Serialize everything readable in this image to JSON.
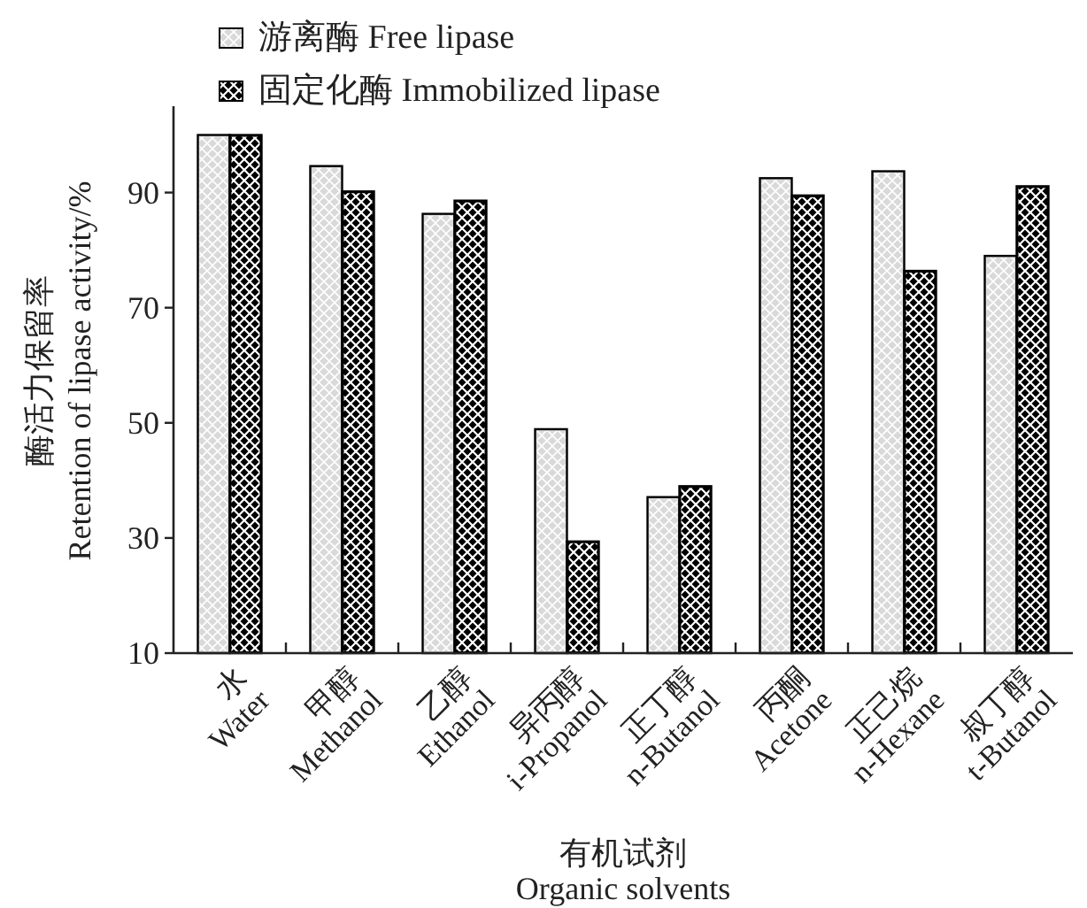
{
  "chart_data": {
    "type": "bar",
    "xlabel": "有机试剂 Organic solvents",
    "ylabel": "酶活力保留率 Retention of lipase activity/%",
    "categories": [
      "水 Water",
      "甲醇 Methanol",
      "乙醇 Ethanol",
      "异丙醇 i-Propanol",
      "正丁醇 n-Butanol",
      "丙酮 Acetone",
      "正己烷 n-Hexane",
      "叔丁醇 t-Butanol"
    ],
    "series": [
      {
        "name": "游离酶 Free lipase",
        "color": "#d9d9d9",
        "values": [
          100,
          94.6,
          86.3,
          48.9,
          37.1,
          92.5,
          93.7,
          79.0
        ]
      },
      {
        "name": "固定化酶 Immobilized lipase",
        "color": "#000000",
        "values": [
          100,
          90.2,
          88.6,
          29.4,
          39.0,
          89.5,
          76.4,
          91.1
        ]
      }
    ],
    "ylim": [
      10,
      105
    ],
    "yticks": [
      10,
      30,
      50,
      70,
      90
    ],
    "legend": "top left"
  }
}
